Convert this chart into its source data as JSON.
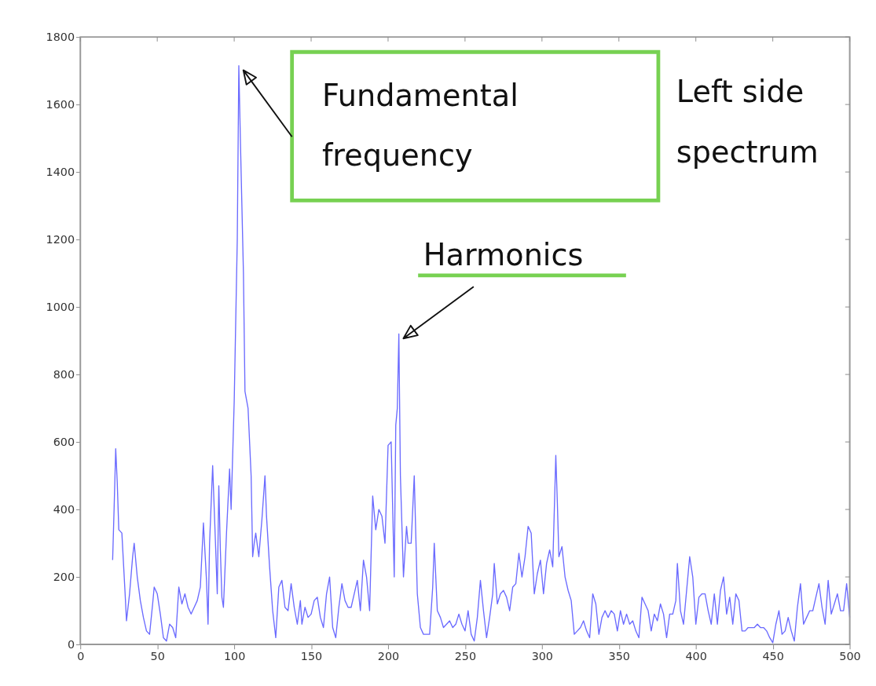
{
  "chart_data": {
    "type": "line",
    "x": [
      21,
      22,
      23,
      24,
      25,
      27,
      29,
      30,
      32,
      34,
      35,
      37,
      39,
      41,
      43,
      45,
      47,
      48,
      50,
      52,
      54,
      56,
      58,
      60,
      62,
      64,
      66,
      68,
      70,
      72,
      74,
      76,
      78,
      80,
      82,
      83,
      84,
      86,
      88,
      89,
      90,
      91,
      92,
      93,
      95,
      97,
      98,
      100,
      102,
      103,
      104,
      106,
      107,
      109,
      111,
      112,
      113,
      114,
      116,
      118,
      120,
      121,
      123,
      125,
      127,
      129,
      131,
      133,
      135,
      137,
      139,
      141,
      143,
      144,
      146,
      148,
      150,
      152,
      154,
      156,
      158,
      160,
      162,
      164,
      166,
      168,
      170,
      172,
      174,
      176,
      178,
      180,
      182,
      184,
      186,
      188,
      190,
      192,
      194,
      196,
      198,
      200,
      202,
      204,
      205,
      206,
      207,
      208,
      210,
      212,
      213,
      215,
      217,
      219,
      221,
      223,
      225,
      227,
      229,
      230,
      232,
      234,
      236,
      238,
      240,
      242,
      244,
      246,
      248,
      250,
      252,
      254,
      256,
      258,
      260,
      262,
      264,
      266,
      268,
      269,
      271,
      273,
      275,
      277,
      279,
      281,
      283,
      285,
      287,
      289,
      291,
      293,
      295,
      297,
      299,
      301,
      303,
      305,
      307,
      309,
      310,
      311,
      313,
      315,
      317,
      319,
      321,
      323,
      325,
      327,
      329,
      331,
      333,
      335,
      337,
      339,
      341,
      343,
      345,
      347,
      349,
      351,
      353,
      355,
      357,
      359,
      361,
      363,
      365,
      367,
      369,
      371,
      373,
      375,
      377,
      379,
      381,
      383,
      385,
      387,
      388,
      390,
      392,
      394,
      396,
      398,
      400,
      402,
      404,
      406,
      408,
      410,
      412,
      414,
      416,
      418,
      420,
      422,
      424,
      426,
      428,
      430,
      432,
      434,
      436,
      438,
      440,
      442,
      444,
      446,
      448,
      450,
      452,
      454,
      456,
      458,
      460,
      462,
      464,
      466,
      468,
      470,
      472,
      474,
      476,
      478,
      480,
      482,
      484,
      486,
      488,
      490,
      492,
      494,
      496,
      498,
      500
    ],
    "series": [
      {
        "color": "#6a6aff",
        "values": [
          250,
          410,
          580,
          480,
          340,
          330,
          160,
          70,
          150,
          260,
          300,
          200,
          130,
          80,
          40,
          30,
          120,
          170,
          150,
          90,
          20,
          10,
          60,
          50,
          20,
          170,
          120,
          150,
          110,
          90,
          110,
          130,
          170,
          360,
          190,
          60,
          300,
          530,
          280,
          150,
          470,
          280,
          140,
          110,
          330,
          520,
          400,
          720,
          1200,
          1715,
          1500,
          1100,
          750,
          700,
          500,
          260,
          300,
          330,
          260,
          370,
          500,
          380,
          230,
          100,
          20,
          170,
          190,
          110,
          100,
          180,
          110,
          60,
          130,
          60,
          110,
          80,
          90,
          130,
          140,
          80,
          50,
          150,
          200,
          50,
          20,
          110,
          180,
          130,
          110,
          110,
          150,
          190,
          100,
          250,
          200,
          100,
          440,
          340,
          400,
          380,
          300,
          590,
          600,
          200,
          650,
          700,
          920,
          500,
          200,
          350,
          300,
          300,
          500,
          150,
          50,
          30,
          30,
          30,
          170,
          300,
          100,
          80,
          50,
          60,
          70,
          50,
          60,
          90,
          60,
          40,
          100,
          30,
          10,
          80,
          190,
          100,
          20,
          80,
          150,
          240,
          120,
          150,
          160,
          140,
          100,
          170,
          180,
          270,
          200,
          260,
          350,
          330,
          150,
          210,
          250,
          150,
          240,
          280,
          230,
          560,
          420,
          260,
          290,
          200,
          160,
          130,
          30,
          40,
          50,
          70,
          40,
          20,
          150,
          120,
          30,
          80,
          100,
          80,
          100,
          90,
          40,
          100,
          60,
          90,
          60,
          70,
          40,
          20,
          140,
          120,
          100,
          40,
          90,
          70,
          120,
          90,
          20,
          90,
          90,
          130,
          240,
          100,
          60,
          160,
          260,
          200,
          60,
          140,
          150,
          150,
          100,
          60,
          150,
          60,
          160,
          200,
          90,
          140,
          60,
          150,
          130,
          40,
          40,
          50,
          50,
          50,
          60,
          50,
          50,
          40,
          20,
          5,
          60,
          100,
          30,
          40,
          80,
          40,
          10,
          110,
          180,
          60,
          80,
          100,
          100,
          140,
          180,
          110,
          60,
          190,
          90,
          120,
          150,
          100,
          100,
          180,
          80
        ]
      }
    ],
    "xlim": [
      0,
      500
    ],
    "xticks": [
      0,
      50,
      100,
      150,
      200,
      250,
      300,
      350,
      400,
      450,
      500
    ],
    "ylim": [
      0,
      1800
    ],
    "yticks": [
      0,
      200,
      400,
      600,
      800,
      1000,
      1200,
      1400,
      1600,
      1800
    ],
    "grid": false,
    "annotations": [
      {
        "text": "Fundamental frequency",
        "x": 103,
        "y": 1715
      },
      "Left side spectrum",
      {
        "text": "Harmonics",
        "x": 207,
        "y": 920
      }
    ]
  }
}
